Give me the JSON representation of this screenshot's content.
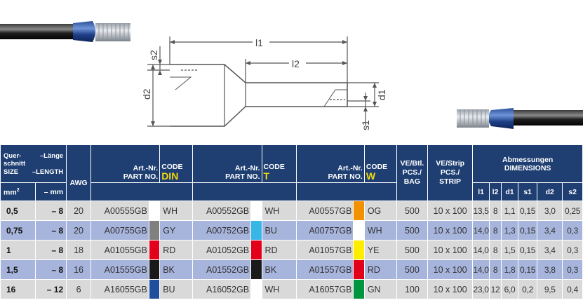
{
  "drawing": {
    "labels": {
      "l1": "l1",
      "l2": "l2",
      "s2": "s2",
      "d2": "d2",
      "d1": "d1",
      "s1": "s1"
    }
  },
  "header": {
    "cross_section_de": "Quer-schnitt",
    "cross_section_en": "SIZE",
    "length_de": "–Länge",
    "length_en": "–LENGTH",
    "unit_mm2": "mm",
    "unit_sup": "2",
    "unit_mm": "– mm",
    "awg": "AWG",
    "art_nr_de": "Art.-Nr.",
    "part_no_en": "PART NO.",
    "code": "CODE",
    "code_din": "DIN",
    "code_t": "T",
    "code_w": "W",
    "ve_btl_de": "VE/Btl.",
    "pcs_bag_1": "PCS./",
    "pcs_bag_2": "BAG",
    "ve_strip_de": "VE/Strip",
    "pcs_strip_1": "PCS./",
    "pcs_strip_2": "STRIP",
    "dims_de": "Abmessungen",
    "dims_en": "DIMENSIONS",
    "d_l1": "l1",
    "d_l2": "l2",
    "d_d1": "d1",
    "d_s1": "s1",
    "d_d2": "d2",
    "d_s2": "s2"
  },
  "colors": {
    "header_bg": "#1f3f72",
    "code_accent": "#f5d80f",
    "row_light": "#d9d9d9",
    "row_blue": "#a7b4dc"
  },
  "rows": [
    {
      "size": "0,5",
      "length": "– 8",
      "awg": "20",
      "din_part": "A00555GB",
      "din_code": "WH",
      "din_color": "#ffffff",
      "t_part": "A00552GB",
      "t_code": "WH",
      "t_color": "#ffffff",
      "w_part": "A00557GB",
      "w_code": "OG",
      "w_color": "#f39200",
      "bag": "500",
      "strip": "10 x 100",
      "l1": "13,5",
      "l2": "8",
      "d1": "1,1",
      "s1": "0,15",
      "d2": "3,0",
      "s2": "0,25"
    },
    {
      "size": "0,75",
      "length": "– 8",
      "awg": "20",
      "din_part": "A00755GB",
      "din_code": "GY",
      "din_color": "#808080",
      "t_part": "A00752GB",
      "t_code": "BU",
      "t_color": "#38b6e6",
      "w_part": "A00757GB",
      "w_code": "WH",
      "w_color": "#ffffff",
      "bag": "500",
      "strip": "10 x 100",
      "l1": "14,0",
      "l2": "8",
      "d1": "1,3",
      "s1": "0,15",
      "d2": "3,4",
      "s2": "0,3"
    },
    {
      "size": "1",
      "length": "– 8",
      "awg": "18",
      "din_part": "A01055GB",
      "din_code": "RD",
      "din_color": "#e2001a",
      "t_part": "A01052GB",
      "t_code": "RD",
      "t_color": "#e2001a",
      "w_part": "A01057GB",
      "w_code": "YE",
      "w_color": "#ffed00",
      "bag": "500",
      "strip": "10 x 100",
      "l1": "14,0",
      "l2": "8",
      "d1": "1,5",
      "s1": "0,15",
      "d2": "3,4",
      "s2": "0,3"
    },
    {
      "size": "1,5",
      "length": "– 8",
      "awg": "16",
      "din_part": "A01555GB",
      "din_code": "BK",
      "din_color": "#1a1a1a",
      "t_part": "A01552GB",
      "t_code": "BK",
      "t_color": "#1a1a1a",
      "w_part": "A01557GB",
      "w_code": "RD",
      "w_color": "#e2001a",
      "bag": "500",
      "strip": "10 x 100",
      "l1": "14,0",
      "l2": "8",
      "d1": "1,8",
      "s1": "0,15",
      "d2": "3,8",
      "s2": "0,3"
    },
    {
      "size": "16",
      "length": "– 12",
      "awg": "6",
      "din_part": "A16055GB",
      "din_code": "BU",
      "din_color": "#1f4e9c",
      "t_part": "A16052GB",
      "t_code": "WH",
      "t_color": "#ffffff",
      "w_part": "A16057GB",
      "w_code": "GN",
      "w_color": "#009640",
      "bag": "100",
      "strip": "10 x 100",
      "l1": "23,0",
      "l2": "12",
      "d1": "6,0",
      "s1": "0,2",
      "d2": "9,5",
      "s2": "0,4"
    }
  ]
}
